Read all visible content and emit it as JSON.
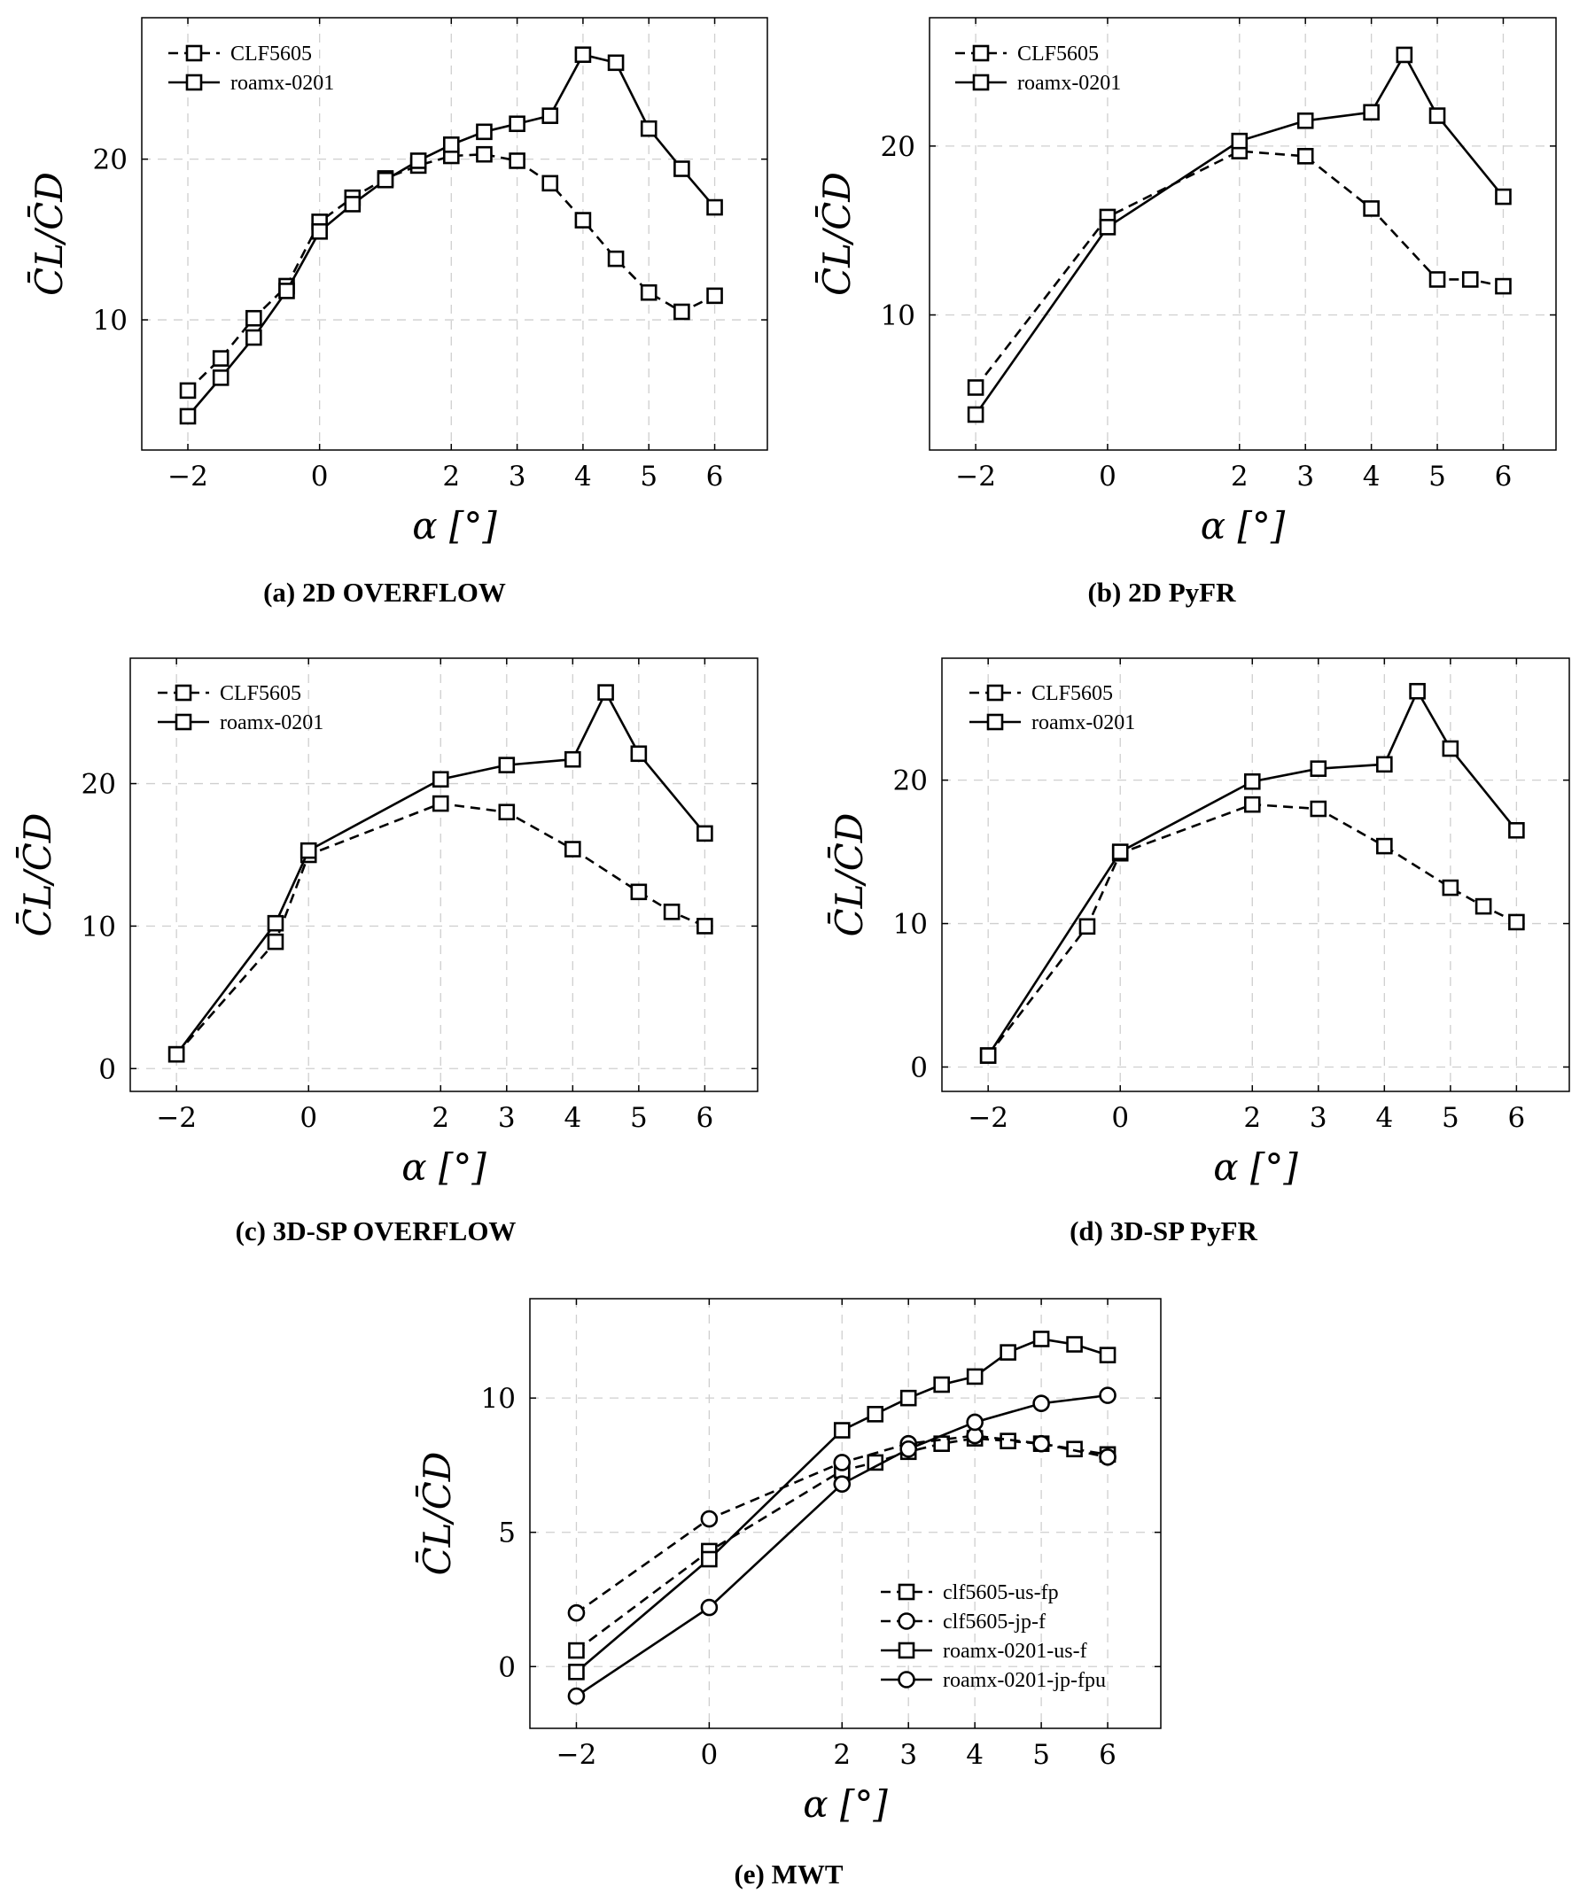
{
  "x_axis_label": "α [°]",
  "y_axis_label": "C̄L/C̄D",
  "chart_data": [
    {
      "id": "a",
      "type": "line",
      "caption": "(a) 2D OVERFLOW",
      "xlabel": "α [°]",
      "ylabel": "C̄L/C̄D",
      "x_ticks": [
        -2,
        0,
        2,
        3,
        4,
        5,
        6
      ],
      "y_ticks": [
        10,
        20
      ],
      "ylim": [
        1.9,
        28.8
      ],
      "legend_position": "top-left",
      "series": [
        {
          "name": "CLF5605",
          "line": "dashed",
          "marker": "square",
          "x": [
            -2,
            -1.5,
            -1,
            -0.5,
            0,
            0.5,
            1,
            1.5,
            2,
            2.5,
            3,
            3.5,
            4,
            4.5,
            5,
            5.5,
            6
          ],
          "y": [
            5.6,
            7.6,
            10.1,
            12.1,
            16.1,
            17.6,
            18.8,
            19.6,
            20.2,
            20.3,
            19.9,
            18.5,
            16.2,
            13.8,
            11.7,
            10.5,
            11.5
          ]
        },
        {
          "name": "roamx-0201",
          "line": "solid",
          "marker": "square",
          "x": [
            -2,
            -1.5,
            -1,
            -0.5,
            0,
            0.5,
            1,
            1.5,
            2,
            2.5,
            3,
            3.5,
            4,
            4.5,
            5,
            5.5,
            6
          ],
          "y": [
            4.0,
            6.4,
            8.9,
            11.8,
            15.5,
            17.2,
            18.7,
            19.9,
            20.9,
            21.7,
            22.2,
            22.7,
            26.5,
            26.0,
            21.9,
            19.4,
            17.0
          ]
        }
      ]
    },
    {
      "id": "b",
      "type": "line",
      "caption": "(b) 2D PyFR",
      "xlabel": "α [°]",
      "ylabel": "C̄L/C̄D",
      "x_ticks": [
        -2,
        0,
        2,
        3,
        4,
        5,
        6
      ],
      "y_ticks": [
        10,
        20
      ],
      "ylim": [
        2.0,
        27.6
      ],
      "legend_position": "top-left",
      "series": [
        {
          "name": "CLF5605",
          "line": "dashed",
          "marker": "square",
          "x": [
            -2,
            0,
            2,
            3,
            4,
            5,
            5.5,
            6
          ],
          "y": [
            5.7,
            15.8,
            19.7,
            19.4,
            16.3,
            12.1,
            12.1,
            11.7
          ]
        },
        {
          "name": "roamx-0201",
          "line": "solid",
          "marker": "square",
          "x": [
            -2,
            0,
            2,
            3,
            4,
            4.5,
            5,
            6
          ],
          "y": [
            4.1,
            15.2,
            20.3,
            21.5,
            22.0,
            25.4,
            21.8,
            17.0
          ]
        }
      ]
    },
    {
      "id": "c",
      "type": "line",
      "caption": "(c) 3D-SP OVERFLOW",
      "xlabel": "α [°]",
      "ylabel": "C̄L/C̄D",
      "x_ticks": [
        -2,
        0,
        2,
        3,
        4,
        5,
        6
      ],
      "y_ticks": [
        0,
        10,
        20
      ],
      "ylim": [
        -1.6,
        28.8
      ],
      "legend_position": "top-left",
      "series": [
        {
          "name": "CLF5605",
          "line": "dashed",
          "marker": "square",
          "x": [
            -2,
            -0.5,
            0,
            2,
            3,
            4,
            5,
            5.5,
            6
          ],
          "y": [
            1.0,
            8.9,
            15.0,
            18.6,
            18.0,
            15.4,
            12.4,
            11.0,
            10.0
          ]
        },
        {
          "name": "roamx-0201",
          "line": "solid",
          "marker": "square",
          "x": [
            -2,
            -0.5,
            0,
            2,
            3,
            4,
            4.5,
            5,
            6
          ],
          "y": [
            1.0,
            10.2,
            15.3,
            20.3,
            21.3,
            21.7,
            26.4,
            22.1,
            16.5
          ]
        }
      ]
    },
    {
      "id": "d",
      "type": "line",
      "caption": "(d) 3D-SP PyFR",
      "xlabel": "α [°]",
      "ylabel": "C̄L/C̄D",
      "x_ticks": [
        -2,
        0,
        2,
        3,
        4,
        5,
        6
      ],
      "y_ticks": [
        0,
        10,
        20
      ],
      "ylim": [
        -1.7,
        28.5
      ],
      "legend_position": "top-left",
      "series": [
        {
          "name": "CLF5605",
          "line": "dashed",
          "marker": "square",
          "x": [
            -2,
            -0.5,
            0,
            2,
            3,
            4,
            5,
            5.5,
            6
          ],
          "y": [
            0.8,
            9.8,
            14.9,
            18.3,
            18.0,
            15.4,
            12.5,
            11.2,
            10.1
          ]
        },
        {
          "name": "roamx-0201",
          "line": "solid",
          "marker": "square",
          "x": [
            -2,
            0,
            2,
            3,
            4,
            4.5,
            5,
            6
          ],
          "y": [
            0.8,
            15.0,
            19.9,
            20.8,
            21.1,
            26.2,
            22.2,
            16.5
          ]
        }
      ]
    },
    {
      "id": "e",
      "type": "line",
      "caption": "(e) MWT",
      "xlabel": "α [°]",
      "ylabel": "C̄L/C̄D",
      "x_ticks": [
        -2,
        0,
        2,
        3,
        4,
        5,
        6
      ],
      "y_ticks": [
        0,
        5,
        10
      ],
      "ylim": [
        -2.3,
        13.7
      ],
      "legend_position": "bottom-right",
      "series": [
        {
          "name": "clf5605-us-fp",
          "line": "dashed",
          "marker": "square",
          "x": [
            -2,
            0,
            2,
            2.5,
            3,
            3.5,
            4,
            4.5,
            5,
            5.5,
            6
          ],
          "y": [
            0.6,
            4.3,
            7.3,
            7.6,
            8.0,
            8.3,
            8.5,
            8.4,
            8.3,
            8.1,
            7.9
          ]
        },
        {
          "name": "clf5605-jp-f",
          "line": "dashed",
          "marker": "circle",
          "x": [
            -2,
            0,
            2,
            3,
            4,
            5,
            6
          ],
          "y": [
            2.0,
            5.5,
            7.6,
            8.3,
            8.6,
            8.3,
            7.8
          ]
        },
        {
          "name": "roamx-0201-us-f",
          "line": "solid",
          "marker": "square",
          "x": [
            -2,
            0,
            2,
            2.5,
            3,
            3.5,
            4,
            4.5,
            5,
            5.5,
            6
          ],
          "y": [
            -0.2,
            4.0,
            8.8,
            9.4,
            10.0,
            10.5,
            10.8,
            11.7,
            12.2,
            12.0,
            11.6
          ]
        },
        {
          "name": "roamx-0201-jp-fpu",
          "line": "solid",
          "marker": "circle",
          "x": [
            -2,
            0,
            2,
            3,
            4,
            5,
            6
          ],
          "y": [
            -1.1,
            2.2,
            6.8,
            8.1,
            9.1,
            9.8,
            10.1
          ]
        }
      ]
    }
  ]
}
